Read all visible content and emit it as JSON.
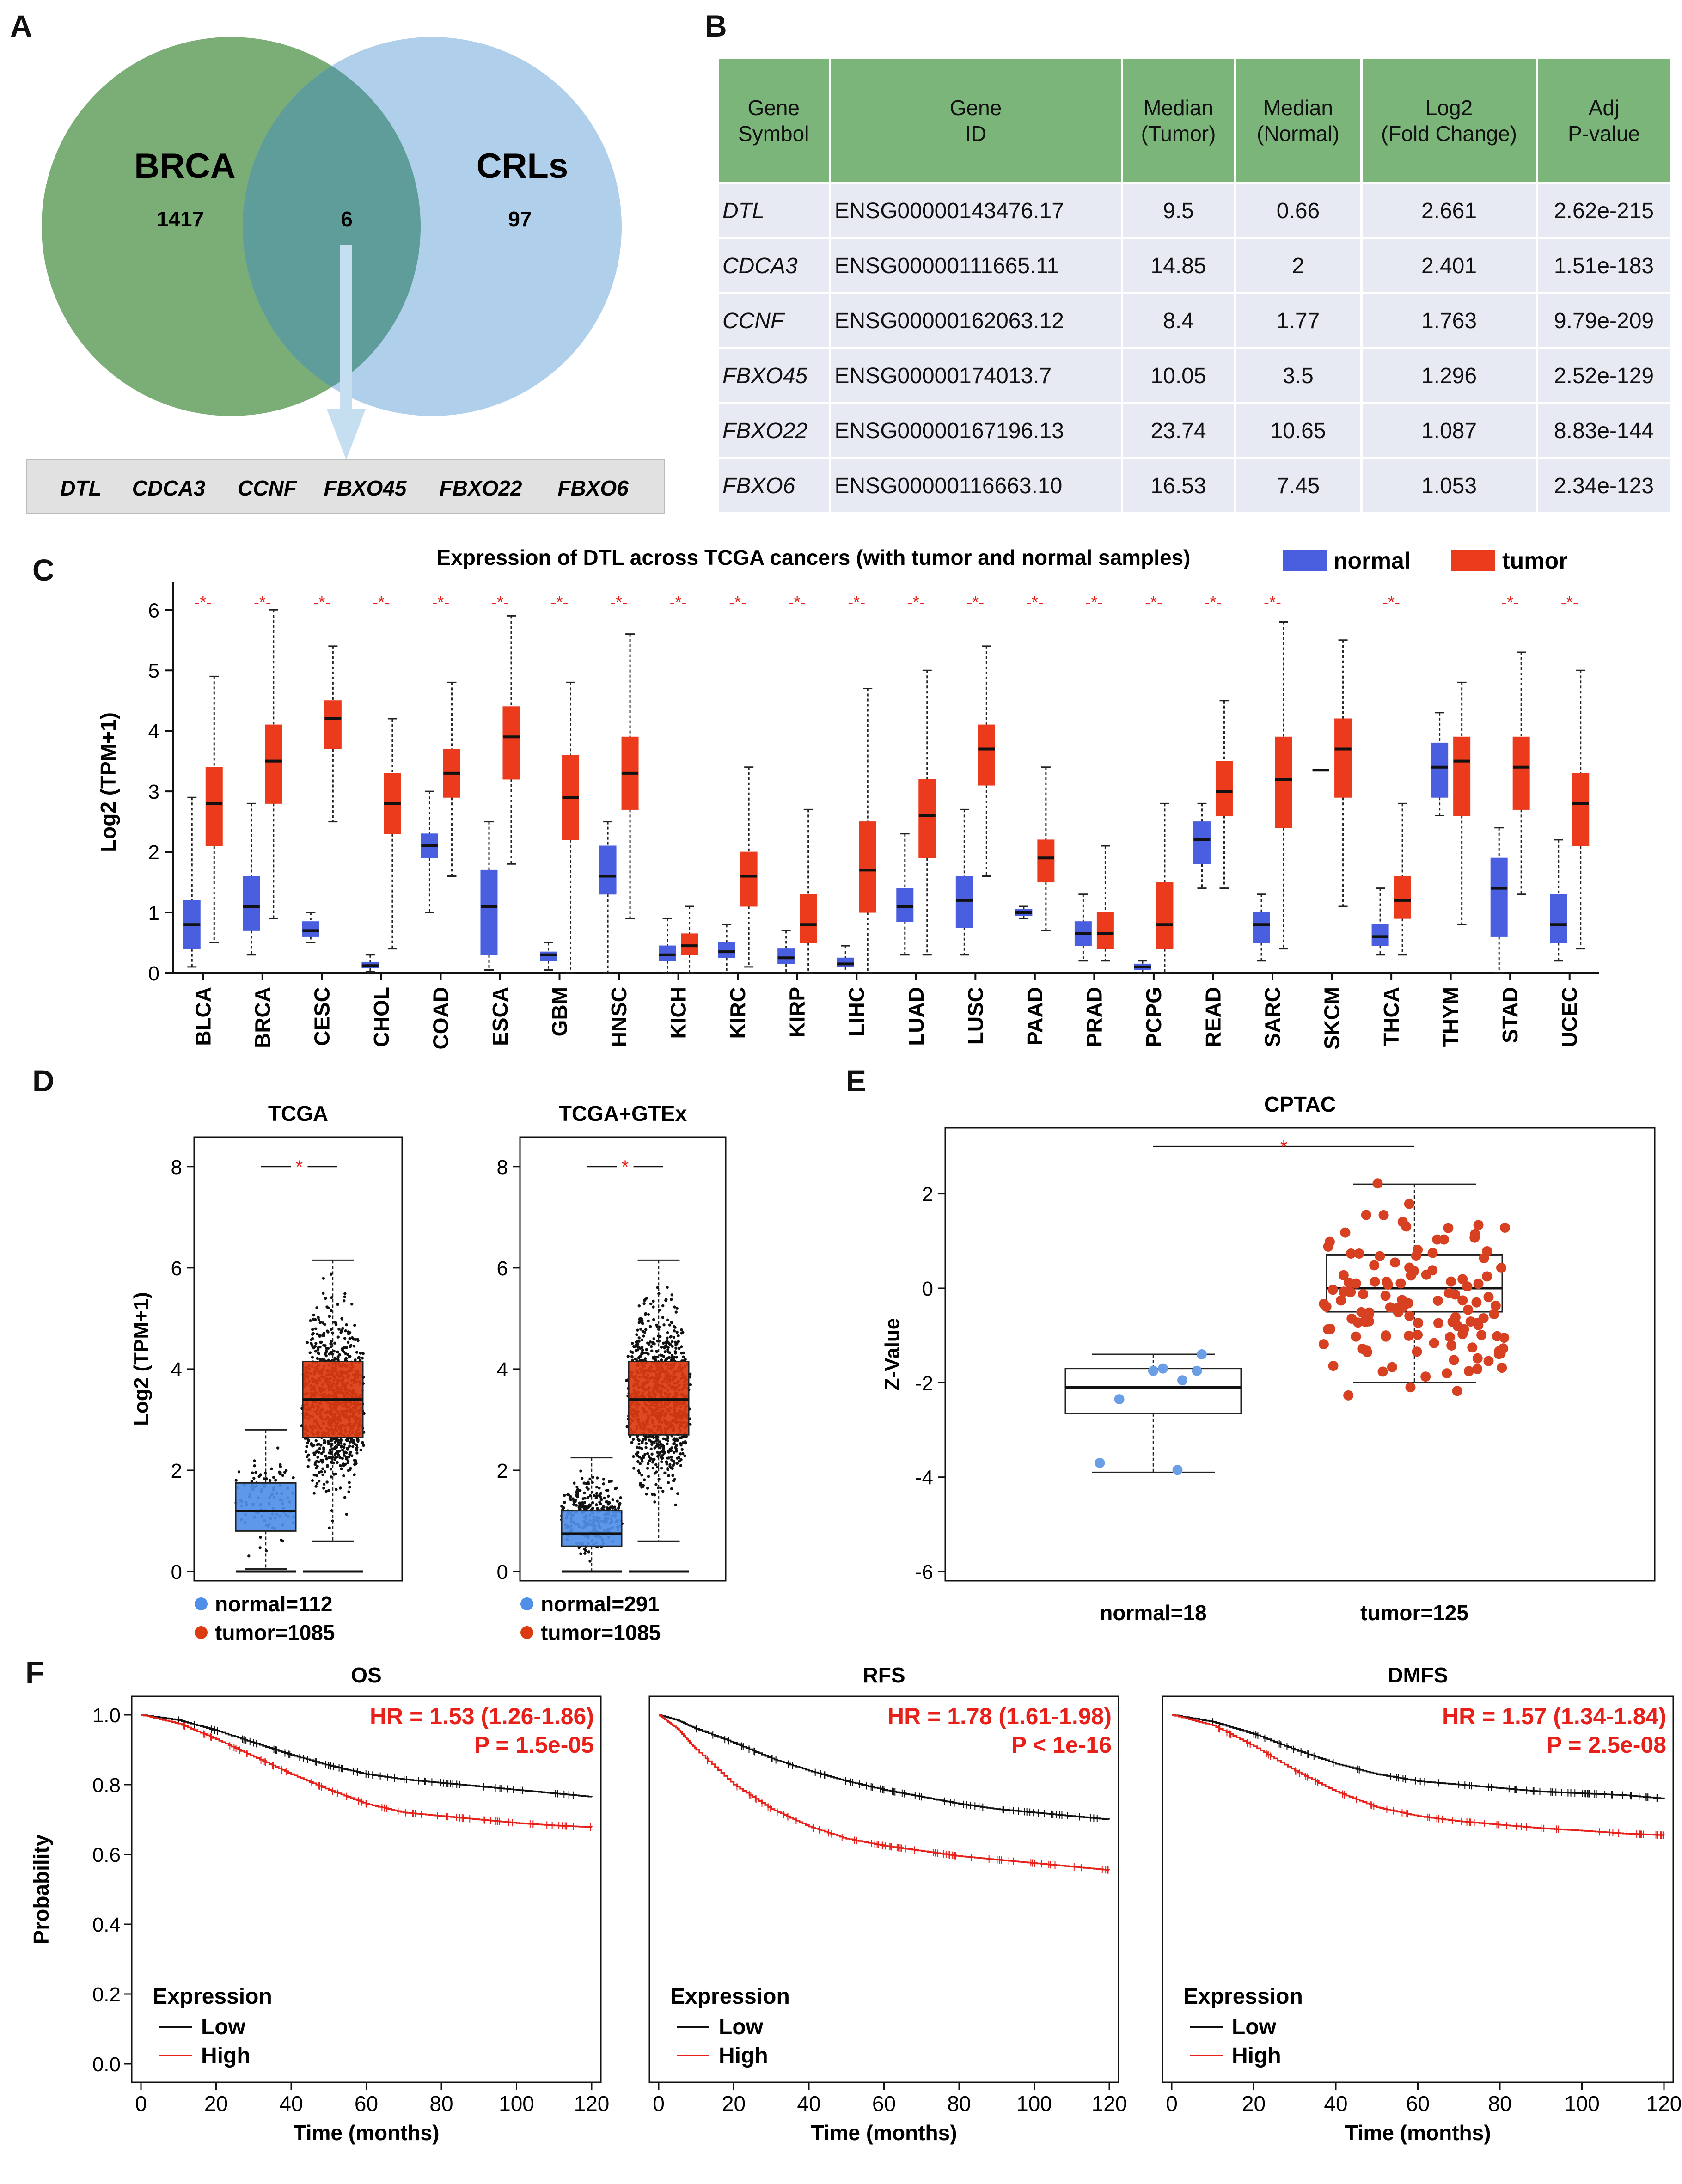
{
  "panels": {
    "a": "A",
    "b": "B",
    "c": "C",
    "d": "D",
    "e": "E",
    "f": "F"
  },
  "venn": {
    "left_label": "BRCA",
    "left_count": "1417",
    "right_label": "CRLs",
    "right_count": "97",
    "overlap_count": "6",
    "genes": [
      "DTL",
      "CDCA3",
      "CCNF",
      "FBXO45",
      "FBXO22",
      "FBXO6"
    ],
    "colors": {
      "left": "#7aae76",
      "right": "#a9cbe8",
      "arrow": "#c6dff0"
    }
  },
  "table": {
    "headers": [
      "Gene\nSymbol",
      "Gene\nID",
      "Median\n(Tumor)",
      "Median\n(Normal)",
      "Log2\n(Fold Change)",
      "Adj\nP-value"
    ],
    "rows": [
      [
        "DTL",
        "ENSG00000143476.17",
        "9.5",
        "0.66",
        "2.661",
        "2.62e-215"
      ],
      [
        "CDCA3",
        "ENSG00000111665.11",
        "14.85",
        "2",
        "2.401",
        "1.51e-183"
      ],
      [
        "CCNF",
        "ENSG00000162063.12",
        "8.4",
        "1.77",
        "1.763",
        "9.79e-209"
      ],
      [
        "FBXO45",
        "ENSG00000174013.7",
        "10.05",
        "3.5",
        "1.296",
        "2.52e-129"
      ],
      [
        "FBXO22",
        "ENSG00000167196.13",
        "23.74",
        "10.65",
        "1.087",
        "8.83e-144"
      ],
      [
        "FBXO6",
        "ENSG00000116663.10",
        "16.53",
        "7.45",
        "1.053",
        "2.34e-123"
      ]
    ]
  },
  "chart_data": [
    {
      "id": "C",
      "type": "box",
      "title": "Expression of DTL across TCGA cancers (with tumor and normal samples)",
      "ylabel": "Log2 (TPM+1)",
      "ylim": [
        0,
        6.3
      ],
      "yticks": [
        0,
        1,
        2,
        3,
        4,
        5,
        6
      ],
      "legend": [
        {
          "name": "normal",
          "color": "#4a5fe0"
        },
        {
          "name": "tumor",
          "color": "#ec3a1c"
        }
      ],
      "significance_mark": "-*-",
      "categories": [
        "BLCA",
        "BRCA",
        "CESC",
        "CHOL",
        "COAD",
        "ESCA",
        "GBM",
        "HNSC",
        "KICH",
        "KIRC",
        "KIRP",
        "LIHC",
        "LUAD",
        "LUSC",
        "PAAD",
        "PRAD",
        "PCPG",
        "READ",
        "SARC",
        "SKCM",
        "THCA",
        "THYM",
        "STAD",
        "UCEC"
      ],
      "significant": [
        true,
        true,
        true,
        true,
        true,
        true,
        true,
        true,
        true,
        true,
        true,
        true,
        true,
        true,
        true,
        true,
        true,
        true,
        true,
        false,
        true,
        false,
        true,
        true
      ],
      "normal": [
        [
          0.1,
          0.4,
          0.8,
          1.2,
          2.9
        ],
        [
          0.3,
          0.7,
          1.1,
          1.6,
          2.8
        ],
        [
          0.5,
          0.6,
          0.7,
          0.85,
          1.0
        ],
        [
          0.02,
          0.08,
          0.12,
          0.18,
          0.3
        ],
        [
          1.0,
          1.9,
          2.1,
          2.3,
          3.0
        ],
        [
          0.05,
          0.3,
          1.1,
          1.7,
          2.5
        ],
        [
          0.05,
          0.2,
          0.3,
          0.35,
          0.5
        ],
        [
          0.0,
          1.3,
          1.6,
          2.1,
          2.5
        ],
        [
          0.0,
          0.2,
          0.3,
          0.45,
          0.9
        ],
        [
          0.0,
          0.25,
          0.35,
          0.5,
          0.8
        ],
        [
          0.0,
          0.15,
          0.25,
          0.4,
          0.7
        ],
        [
          0.0,
          0.1,
          0.15,
          0.25,
          0.45
        ],
        [
          0.3,
          0.85,
          1.1,
          1.4,
          2.3
        ],
        [
          0.3,
          0.75,
          1.2,
          1.6,
          2.7
        ],
        [
          0.9,
          0.95,
          1.0,
          1.05,
          1.1
        ],
        [
          0.2,
          0.45,
          0.65,
          0.85,
          1.3
        ],
        [
          0.0,
          0.05,
          0.1,
          0.15,
          0.2
        ],
        [
          1.4,
          1.8,
          2.2,
          2.5,
          2.8
        ],
        [
          0.2,
          0.5,
          0.8,
          1.0,
          1.3
        ],
        null,
        [
          0.3,
          0.45,
          0.6,
          0.8,
          1.4
        ],
        [
          2.6,
          2.9,
          3.4,
          3.8,
          4.3
        ],
        [
          0.0,
          0.6,
          1.4,
          1.9,
          2.4
        ],
        [
          0.2,
          0.5,
          0.8,
          1.3,
          2.2
        ]
      ],
      "tumor": [
        [
          0.5,
          2.1,
          2.8,
          3.4,
          4.9
        ],
        [
          0.9,
          2.8,
          3.5,
          4.1,
          6.0
        ],
        [
          2.5,
          3.7,
          4.2,
          4.5,
          5.4
        ],
        [
          0.4,
          2.3,
          2.8,
          3.3,
          4.2
        ],
        [
          1.6,
          2.9,
          3.3,
          3.7,
          4.8
        ],
        [
          1.8,
          3.2,
          3.9,
          4.4,
          5.9
        ],
        [
          0.0,
          2.2,
          2.9,
          3.6,
          4.8
        ],
        [
          0.9,
          2.7,
          3.3,
          3.9,
          5.6
        ],
        [
          0.0,
          0.3,
          0.45,
          0.65,
          1.1
        ],
        [
          0.1,
          1.1,
          1.6,
          2.0,
          3.4
        ],
        [
          0.0,
          0.5,
          0.8,
          1.3,
          2.7
        ],
        [
          0.0,
          1.0,
          1.7,
          2.5,
          4.7
        ],
        [
          0.3,
          1.9,
          2.6,
          3.2,
          5.0
        ],
        [
          1.6,
          3.1,
          3.7,
          4.1,
          5.4
        ],
        [
          0.7,
          1.5,
          1.9,
          2.2,
          3.4
        ],
        [
          0.2,
          0.4,
          0.65,
          1.0,
          2.1
        ],
        [
          0.0,
          0.4,
          0.8,
          1.5,
          2.8
        ],
        [
          1.4,
          2.6,
          3.0,
          3.5,
          4.5
        ],
        [
          0.4,
          2.4,
          3.2,
          3.9,
          5.8
        ],
        [
          1.1,
          2.9,
          3.7,
          4.2,
          5.5
        ],
        [
          0.3,
          0.9,
          1.2,
          1.6,
          2.8
        ],
        [
          0.8,
          2.6,
          3.5,
          3.9,
          4.8
        ],
        [
          1.3,
          2.7,
          3.4,
          3.9,
          5.3
        ],
        [
          0.4,
          2.1,
          2.8,
          3.3,
          5.0
        ]
      ],
      "skcm_normal_line": 3.35
    },
    {
      "id": "D1",
      "type": "box_strip",
      "title": "TCGA",
      "ylabel": "Log2 (TPM+1)",
      "ylim": [
        0,
        8.4
      ],
      "yticks": [
        0,
        2,
        4,
        6,
        8
      ],
      "groups": [
        {
          "name": "normal",
          "n": 112,
          "color": "#4f8fe8",
          "box": [
            0.05,
            0.8,
            1.2,
            1.75,
            2.8
          ]
        },
        {
          "name": "tumor",
          "n": 1085,
          "color": "#dc3a10",
          "box": [
            0.6,
            2.65,
            3.4,
            4.15,
            6.15
          ]
        }
      ],
      "legend": [
        "normal=112",
        "tumor=1085"
      ],
      "significance_mark": "*"
    },
    {
      "id": "D2",
      "type": "box_strip",
      "title": "TCGA+GTEx",
      "ylim": [
        0,
        8.4
      ],
      "yticks": [
        0,
        2,
        4,
        6,
        8
      ],
      "groups": [
        {
          "name": "normal",
          "n": 291,
          "color": "#4f8fe8",
          "box": [
            0.0,
            0.5,
            0.75,
            1.2,
            2.25
          ]
        },
        {
          "name": "tumor",
          "n": 1085,
          "color": "#dc3a10",
          "box": [
            0.6,
            2.7,
            3.4,
            4.15,
            6.15
          ]
        }
      ],
      "legend": [
        "normal=291",
        "tumor=1085"
      ],
      "significance_mark": "*"
    },
    {
      "id": "E",
      "type": "box_strip",
      "title": "CPTAC",
      "ylabel": "Z-Value",
      "ylim": [
        -6,
        3.2
      ],
      "yticks": [
        -6,
        -4,
        -2,
        0,
        2
      ],
      "groups": [
        {
          "name": "normal",
          "n": 18,
          "color": "#6a9fe6",
          "box": [
            -3.9,
            -2.65,
            -2.1,
            -1.7,
            -1.4
          ]
        },
        {
          "name": "tumor",
          "n": 125,
          "color": "#d84022",
          "box": [
            -2.0,
            -0.5,
            0.0,
            0.7,
            2.2
          ]
        }
      ],
      "normal_points": [
        [
          -0.55,
          -3.7
        ],
        [
          -0.35,
          -2.35
        ],
        [
          0.0,
          -1.75
        ],
        [
          0.1,
          -1.7
        ],
        [
          0.3,
          -1.95
        ],
        [
          0.45,
          -1.75
        ],
        [
          0.5,
          -1.4
        ],
        [
          0.25,
          -3.85
        ]
      ],
      "legend": [
        "normal=18",
        "tumor=125"
      ],
      "significance_mark": "*"
    },
    {
      "id": "F1",
      "type": "line",
      "title": "OS",
      "xlabel": "Time (months)",
      "ylabel": "Probability",
      "xlim": [
        0,
        120
      ],
      "ylim": [
        0,
        1.0
      ],
      "xticks": [
        0,
        20,
        40,
        60,
        80,
        100,
        120
      ],
      "yticks": [
        0.0,
        0.2,
        0.4,
        0.6,
        0.8,
        1.0
      ],
      "annotation": [
        "HR = 1.53 (1.26-1.86)",
        "P = 1.5e-05"
      ],
      "legend_title": "Expression",
      "series": [
        {
          "name": "Low",
          "color": "#111111",
          "x": [
            0,
            10,
            20,
            30,
            40,
            50,
            60,
            70,
            80,
            90,
            100,
            110,
            120
          ],
          "y": [
            1.0,
            0.985,
            0.955,
            0.92,
            0.885,
            0.855,
            0.83,
            0.815,
            0.805,
            0.795,
            0.785,
            0.775,
            0.765
          ]
        },
        {
          "name": "High",
          "color": "#e8201a",
          "x": [
            0,
            10,
            20,
            30,
            40,
            50,
            60,
            70,
            80,
            90,
            100,
            110,
            120
          ],
          "y": [
            1.0,
            0.975,
            0.93,
            0.88,
            0.83,
            0.785,
            0.745,
            0.72,
            0.71,
            0.7,
            0.69,
            0.683,
            0.678
          ]
        }
      ]
    },
    {
      "id": "F2",
      "type": "line",
      "title": "RFS",
      "xlabel": "Time (months)",
      "xlim": [
        0,
        120
      ],
      "ylim": [
        0,
        1.0
      ],
      "xticks": [
        0,
        20,
        40,
        60,
        80,
        100,
        120
      ],
      "annotation": [
        "HR = 1.78 (1.61-1.98)",
        "P < 1e-16"
      ],
      "legend_title": "Expression",
      "series": [
        {
          "name": "Low",
          "color": "#111111",
          "x": [
            0,
            5,
            10,
            20,
            30,
            40,
            50,
            60,
            70,
            80,
            90,
            100,
            110,
            120
          ],
          "y": [
            1.0,
            0.985,
            0.96,
            0.92,
            0.875,
            0.84,
            0.81,
            0.785,
            0.765,
            0.745,
            0.73,
            0.72,
            0.71,
            0.7
          ]
        },
        {
          "name": "High",
          "color": "#e8201a",
          "x": [
            0,
            5,
            10,
            20,
            30,
            40,
            50,
            60,
            70,
            80,
            90,
            100,
            110,
            120
          ],
          "y": [
            1.0,
            0.96,
            0.9,
            0.8,
            0.73,
            0.68,
            0.645,
            0.625,
            0.61,
            0.595,
            0.585,
            0.575,
            0.565,
            0.555
          ]
        }
      ]
    },
    {
      "id": "F3",
      "type": "line",
      "title": "DMFS",
      "xlabel": "Time (months)",
      "xlim": [
        0,
        120
      ],
      "ylim": [
        0,
        1.0
      ],
      "xticks": [
        0,
        20,
        40,
        60,
        80,
        100,
        120
      ],
      "annotation": [
        "HR = 1.57 (1.34-1.84)",
        "P = 2.5e-08"
      ],
      "legend_title": "Expression",
      "series": [
        {
          "name": "Low",
          "color": "#111111",
          "x": [
            0,
            10,
            20,
            30,
            40,
            50,
            60,
            70,
            80,
            90,
            100,
            110,
            120
          ],
          "y": [
            1.0,
            0.98,
            0.945,
            0.9,
            0.86,
            0.83,
            0.81,
            0.8,
            0.79,
            0.78,
            0.775,
            0.77,
            0.76
          ]
        },
        {
          "name": "High",
          "color": "#e8201a",
          "x": [
            0,
            10,
            20,
            30,
            40,
            50,
            60,
            70,
            80,
            90,
            100,
            110,
            120
          ],
          "y": [
            1.0,
            0.97,
            0.91,
            0.84,
            0.78,
            0.735,
            0.71,
            0.695,
            0.685,
            0.675,
            0.668,
            0.66,
            0.655
          ]
        }
      ]
    }
  ]
}
